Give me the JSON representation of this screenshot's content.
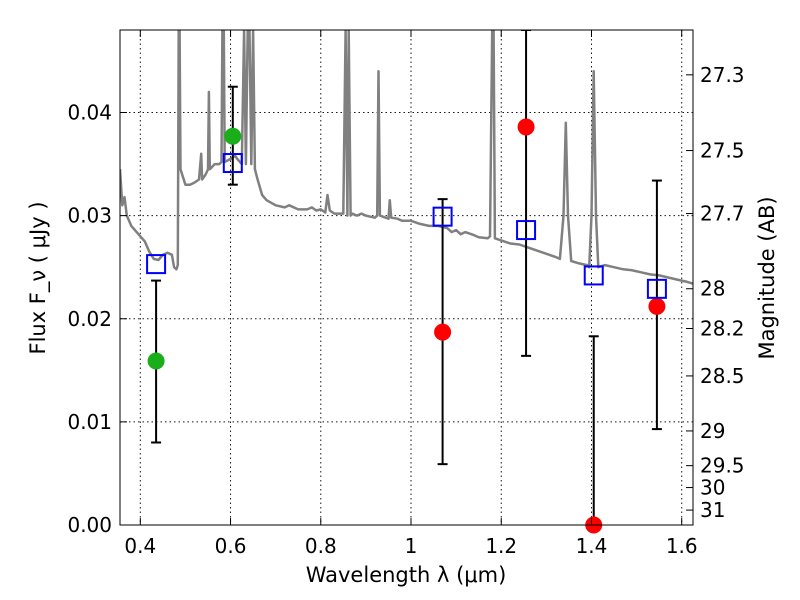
{
  "chart_data": {
    "type": "scatter",
    "title": "",
    "xlabel": "Wavelength  λ (μm)",
    "ylabel": "Flux  F_ν  ( μJy )",
    "ylabel_right": "Magnitude (AB)",
    "xlim": [
      0.355,
      1.625
    ],
    "ylim": [
      0.0,
      0.048
    ],
    "x_ticks": [
      0.4,
      0.6,
      0.8,
      1.0,
      1.2,
      1.4,
      1.6
    ],
    "x_tick_labels": [
      "0.4",
      "0.6",
      "0.8",
      "1",
      "1.2",
      "1.4",
      "1.6"
    ],
    "y_ticks": [
      0.0,
      0.01,
      0.02,
      0.03,
      0.04
    ],
    "y_tick_labels": [
      "0.00",
      "0.01",
      "0.02",
      "0.03",
      "0.04"
    ],
    "right_ticks": [
      27.3,
      27.5,
      27.7,
      28.0,
      28.2,
      28.5,
      29.0,
      29.5,
      30.0,
      31.0
    ],
    "right_tick_labels": [
      "27.3",
      "27.5",
      "27.7",
      "28",
      "28.2",
      "28.5",
      "29",
      "29.5",
      "30",
      "31"
    ],
    "grid": true,
    "model_spectrum": {
      "color": "#808080",
      "points": [
        [
          0.355,
          0.0345
        ],
        [
          0.36,
          0.031
        ],
        [
          0.365,
          0.0318
        ],
        [
          0.37,
          0.03
        ],
        [
          0.38,
          0.029
        ],
        [
          0.39,
          0.0285
        ],
        [
          0.4,
          0.028
        ],
        [
          0.41,
          0.0275
        ],
        [
          0.42,
          0.0265
        ],
        [
          0.43,
          0.0258
        ],
        [
          0.44,
          0.0257
        ],
        [
          0.45,
          0.0262
        ],
        [
          0.46,
          0.0264
        ],
        [
          0.47,
          0.0262
        ],
        [
          0.475,
          0.025
        ],
        [
          0.48,
          0.0248
        ],
        [
          0.483,
          0.0252
        ],
        [
          0.485,
          0.048
        ],
        [
          0.487,
          0.048
        ],
        [
          0.489,
          0.0345
        ],
        [
          0.5,
          0.033
        ],
        [
          0.51,
          0.033
        ],
        [
          0.52,
          0.0332
        ],
        [
          0.53,
          0.0335
        ],
        [
          0.535,
          0.036
        ],
        [
          0.537,
          0.0335
        ],
        [
          0.545,
          0.034
        ],
        [
          0.55,
          0.0345
        ],
        [
          0.552,
          0.042
        ],
        [
          0.554,
          0.0345
        ],
        [
          0.565,
          0.035
        ],
        [
          0.575,
          0.035
        ],
        [
          0.58,
          0.0352
        ],
        [
          0.582,
          0.048
        ],
        [
          0.585,
          0.048
        ],
        [
          0.587,
          0.0352
        ],
        [
          0.6,
          0.0355
        ],
        [
          0.61,
          0.0358
        ],
        [
          0.615,
          0.0355
        ],
        [
          0.625,
          0.035
        ],
        [
          0.63,
          0.048
        ],
        [
          0.634,
          0.035
        ],
        [
          0.638,
          0.048
        ],
        [
          0.642,
          0.048
        ],
        [
          0.646,
          0.035
        ],
        [
          0.65,
          0.048
        ],
        [
          0.654,
          0.0345
        ],
        [
          0.66,
          0.0335
        ],
        [
          0.67,
          0.032
        ],
        [
          0.68,
          0.0315
        ],
        [
          0.7,
          0.031
        ],
        [
          0.72,
          0.0308
        ],
        [
          0.73,
          0.031
        ],
        [
          0.75,
          0.0306
        ],
        [
          0.77,
          0.0306
        ],
        [
          0.78,
          0.0308
        ],
        [
          0.79,
          0.0305
        ],
        [
          0.8,
          0.0306
        ],
        [
          0.81,
          0.0303
        ],
        [
          0.815,
          0.032
        ],
        [
          0.82,
          0.0305
        ],
        [
          0.83,
          0.0302
        ],
        [
          0.85,
          0.0302
        ],
        [
          0.855,
          0.048
        ],
        [
          0.859,
          0.03
        ],
        [
          0.862,
          0.048
        ],
        [
          0.866,
          0.03
        ],
        [
          0.87,
          0.0302
        ],
        [
          0.88,
          0.03
        ],
        [
          0.89,
          0.0302
        ],
        [
          0.9,
          0.03
        ],
        [
          0.91,
          0.0299
        ],
        [
          0.92,
          0.0298
        ],
        [
          0.925,
          0.03
        ],
        [
          0.928,
          0.044
        ],
        [
          0.931,
          0.03
        ],
        [
          0.95,
          0.0297
        ],
        [
          0.953,
          0.0315
        ],
        [
          0.956,
          0.0298
        ],
        [
          0.97,
          0.0297
        ],
        [
          0.98,
          0.0295
        ],
        [
          1.0,
          0.0295
        ],
        [
          1.02,
          0.0292
        ],
        [
          1.04,
          0.029
        ],
        [
          1.06,
          0.029
        ],
        [
          1.08,
          0.0288
        ],
        [
          1.09,
          0.0284
        ],
        [
          1.1,
          0.0286
        ],
        [
          1.11,
          0.0282
        ],
        [
          1.12,
          0.0284
        ],
        [
          1.14,
          0.0281
        ],
        [
          1.15,
          0.0279
        ],
        [
          1.17,
          0.0278
        ],
        [
          1.175,
          0.028
        ],
        [
          1.18,
          0.048
        ],
        [
          1.183,
          0.048
        ],
        [
          1.186,
          0.0278
        ],
        [
          1.2,
          0.0276
        ],
        [
          1.22,
          0.0273
        ],
        [
          1.24,
          0.0272
        ],
        [
          1.26,
          0.0269
        ],
        [
          1.28,
          0.0266
        ],
        [
          1.3,
          0.0263
        ],
        [
          1.32,
          0.026
        ],
        [
          1.33,
          0.0258
        ],
        [
          1.338,
          0.03
        ],
        [
          1.343,
          0.039
        ],
        [
          1.348,
          0.03
        ],
        [
          1.355,
          0.0256
        ],
        [
          1.37,
          0.0254
        ],
        [
          1.39,
          0.0252
        ],
        [
          1.395,
          0.025
        ],
        [
          1.4,
          0.03
        ],
        [
          1.405,
          0.044
        ],
        [
          1.41,
          0.03
        ],
        [
          1.415,
          0.025
        ],
        [
          1.43,
          0.0252
        ],
        [
          1.45,
          0.025
        ],
        [
          1.47,
          0.0248
        ],
        [
          1.49,
          0.0247
        ],
        [
          1.51,
          0.0245
        ],
        [
          1.53,
          0.0243
        ],
        [
          1.55,
          0.0242
        ],
        [
          1.57,
          0.024
        ],
        [
          1.59,
          0.0238
        ],
        [
          1.61,
          0.0236
        ],
        [
          1.625,
          0.0234
        ]
      ]
    },
    "series": [
      {
        "marker": "circle",
        "color": "#1aaf1a",
        "points": [
          {
            "x": 0.435,
            "y": 0.0159
          },
          {
            "x": 0.605,
            "y": 0.0377
          }
        ]
      },
      {
        "marker": "circle",
        "color": "#ff0000",
        "points": [
          {
            "x": 1.07,
            "y": 0.0187
          },
          {
            "x": 1.255,
            "y": 0.0386
          },
          {
            "x": 1.405,
            "y": 0.0
          },
          {
            "x": 1.545,
            "y": 0.0212
          }
        ]
      },
      {
        "marker": "open-square",
        "color": "#0000ff",
        "points": [
          {
            "x": 0.435,
            "y": 0.0253
          },
          {
            "x": 0.605,
            "y": 0.0351
          },
          {
            "x": 1.07,
            "y": 0.0299
          },
          {
            "x": 1.255,
            "y": 0.0286
          },
          {
            "x": 1.405,
            "y": 0.0242
          },
          {
            "x": 1.545,
            "y": 0.0229
          }
        ]
      }
    ],
    "error_bars": [
      {
        "x": 0.435,
        "low": 0.008,
        "high": 0.0237
      },
      {
        "x": 0.605,
        "low": 0.033,
        "high": 0.0425
      },
      {
        "x": 1.07,
        "low": 0.0059,
        "high": 0.0316
      },
      {
        "x": 1.255,
        "low": 0.0164,
        "high": 0.048
      },
      {
        "x": 1.405,
        "low": 0.0,
        "high": 0.0183
      },
      {
        "x": 1.545,
        "low": 0.0093,
        "high": 0.0334
      }
    ]
  }
}
